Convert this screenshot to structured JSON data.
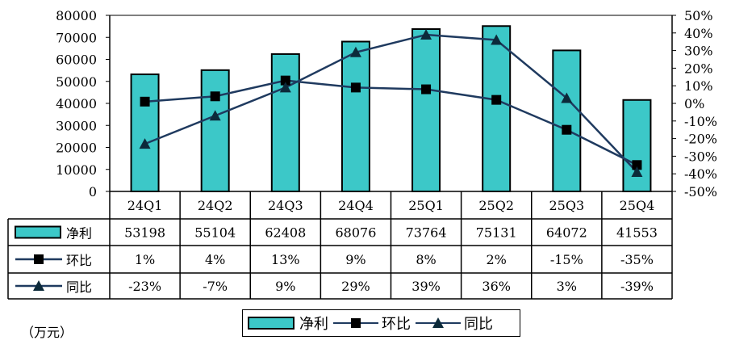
{
  "unit_label": "（万元）",
  "chart_data": {
    "type": "bar",
    "categories": [
      "24Q1",
      "24Q2",
      "24Q3",
      "24Q4",
      "25Q1",
      "25Q2",
      "25Q3",
      "25Q4"
    ],
    "left_axis": {
      "min": 0,
      "max": 80000,
      "step": 10000,
      "ticks": [
        "0",
        "10000",
        "20000",
        "30000",
        "40000",
        "50000",
        "60000",
        "70000",
        "80000"
      ]
    },
    "right_axis": {
      "min": -50,
      "max": 50,
      "step": 10,
      "ticks": [
        "-50%",
        "-40%",
        "-30%",
        "-20%",
        "-10%",
        "0%",
        "10%",
        "20%",
        "30%",
        "40%",
        "50%"
      ]
    },
    "series": [
      {
        "name": "净利",
        "kind": "bar",
        "axis": "left",
        "color": "#3cc8c8",
        "values": [
          53198,
          55104,
          62408,
          68076,
          73764,
          75131,
          64072,
          41553
        ],
        "labels": [
          "53198",
          "55104",
          "62408",
          "68076",
          "73764",
          "75131",
          "64072",
          "41553"
        ]
      },
      {
        "name": "环比",
        "kind": "line",
        "axis": "right",
        "marker": "square",
        "color": "#1f3a5f",
        "values": [
          1,
          4,
          13,
          9,
          8,
          2,
          -15,
          -35
        ],
        "labels": [
          "1%",
          "4%",
          "13%",
          "9%",
          "8%",
          "2%",
          "-15%",
          "-35%"
        ]
      },
      {
        "name": "同比",
        "kind": "line",
        "axis": "right",
        "marker": "triangle",
        "color": "#1f3a5f",
        "values": [
          -23,
          -7,
          9,
          29,
          39,
          36,
          3,
          -39
        ],
        "labels": [
          "-23%",
          "-7%",
          "9%",
          "29%",
          "39%",
          "36%",
          "3%",
          "-39%"
        ]
      }
    ],
    "grid": false,
    "legend": "bottom"
  }
}
